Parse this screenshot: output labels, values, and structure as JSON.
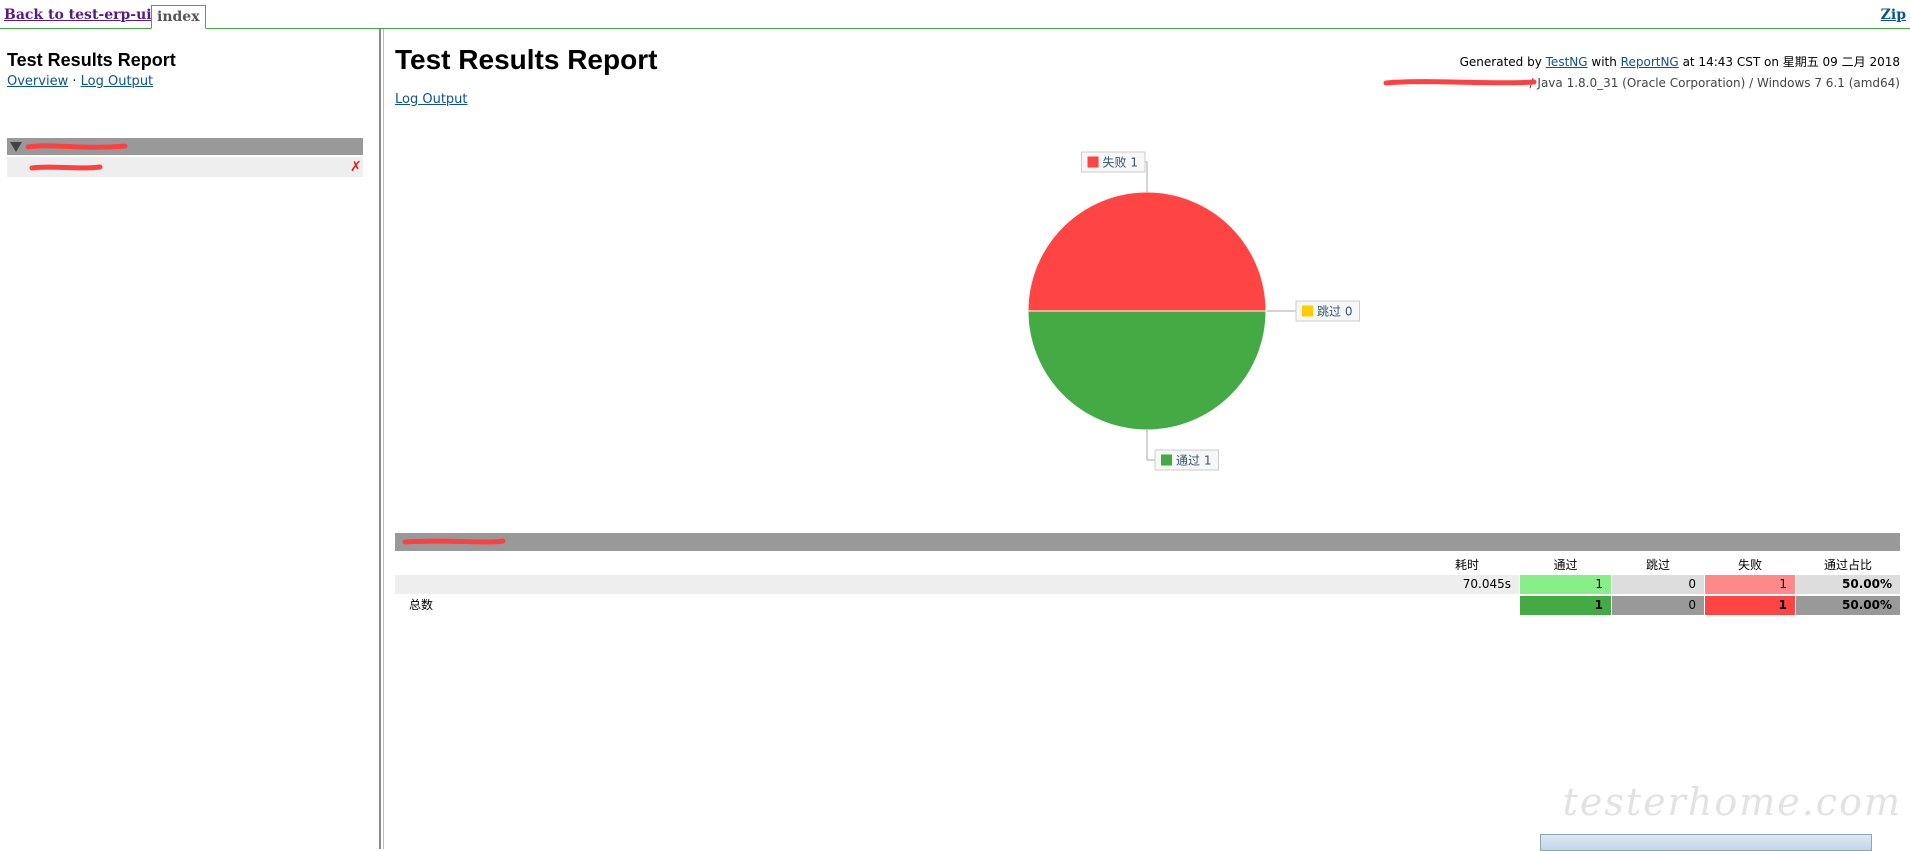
{
  "topbar": {
    "back_link": "Back to test-erp-ui",
    "tab": "index",
    "zip": "Zip"
  },
  "sidebar": {
    "title": "Test Results Report",
    "links": [
      "Overview",
      "Log Output"
    ],
    "separator": "·",
    "fail_icon": "✗"
  },
  "header": {
    "title": "Test Results Report",
    "generated": {
      "prefix": "Generated by",
      "tool": "TestNG",
      "with": "with",
      "reporter": "ReportNG",
      "time": "at 14:43 CST on 星期五 09 二月 2018"
    },
    "environment": "/ Java 1.8.0_31 (Oracle Corporation) / Windows 7 6.1 (amd64)",
    "log_link": "Log Output"
  },
  "pie": {
    "slices": [
      {
        "label": "失败",
        "value": 1,
        "color": "#ff4444"
      },
      {
        "label": "跳过",
        "value": 0,
        "color": "#ffcc00"
      },
      {
        "label": "通过",
        "value": 1,
        "color": "#44aa44"
      }
    ]
  },
  "table": {
    "columns": [
      "耗时",
      "通过",
      "跳过",
      "失败",
      "通过占比"
    ],
    "rows": [
      {
        "duration": "70.045s",
        "pass": 1,
        "skip": 0,
        "fail": 1,
        "rate": "50.00%"
      },
      {
        "name": "总数",
        "pass": 1,
        "skip": 0,
        "fail": 1,
        "rate": "50.00%"
      }
    ]
  },
  "watermark": "testerhome.com"
}
